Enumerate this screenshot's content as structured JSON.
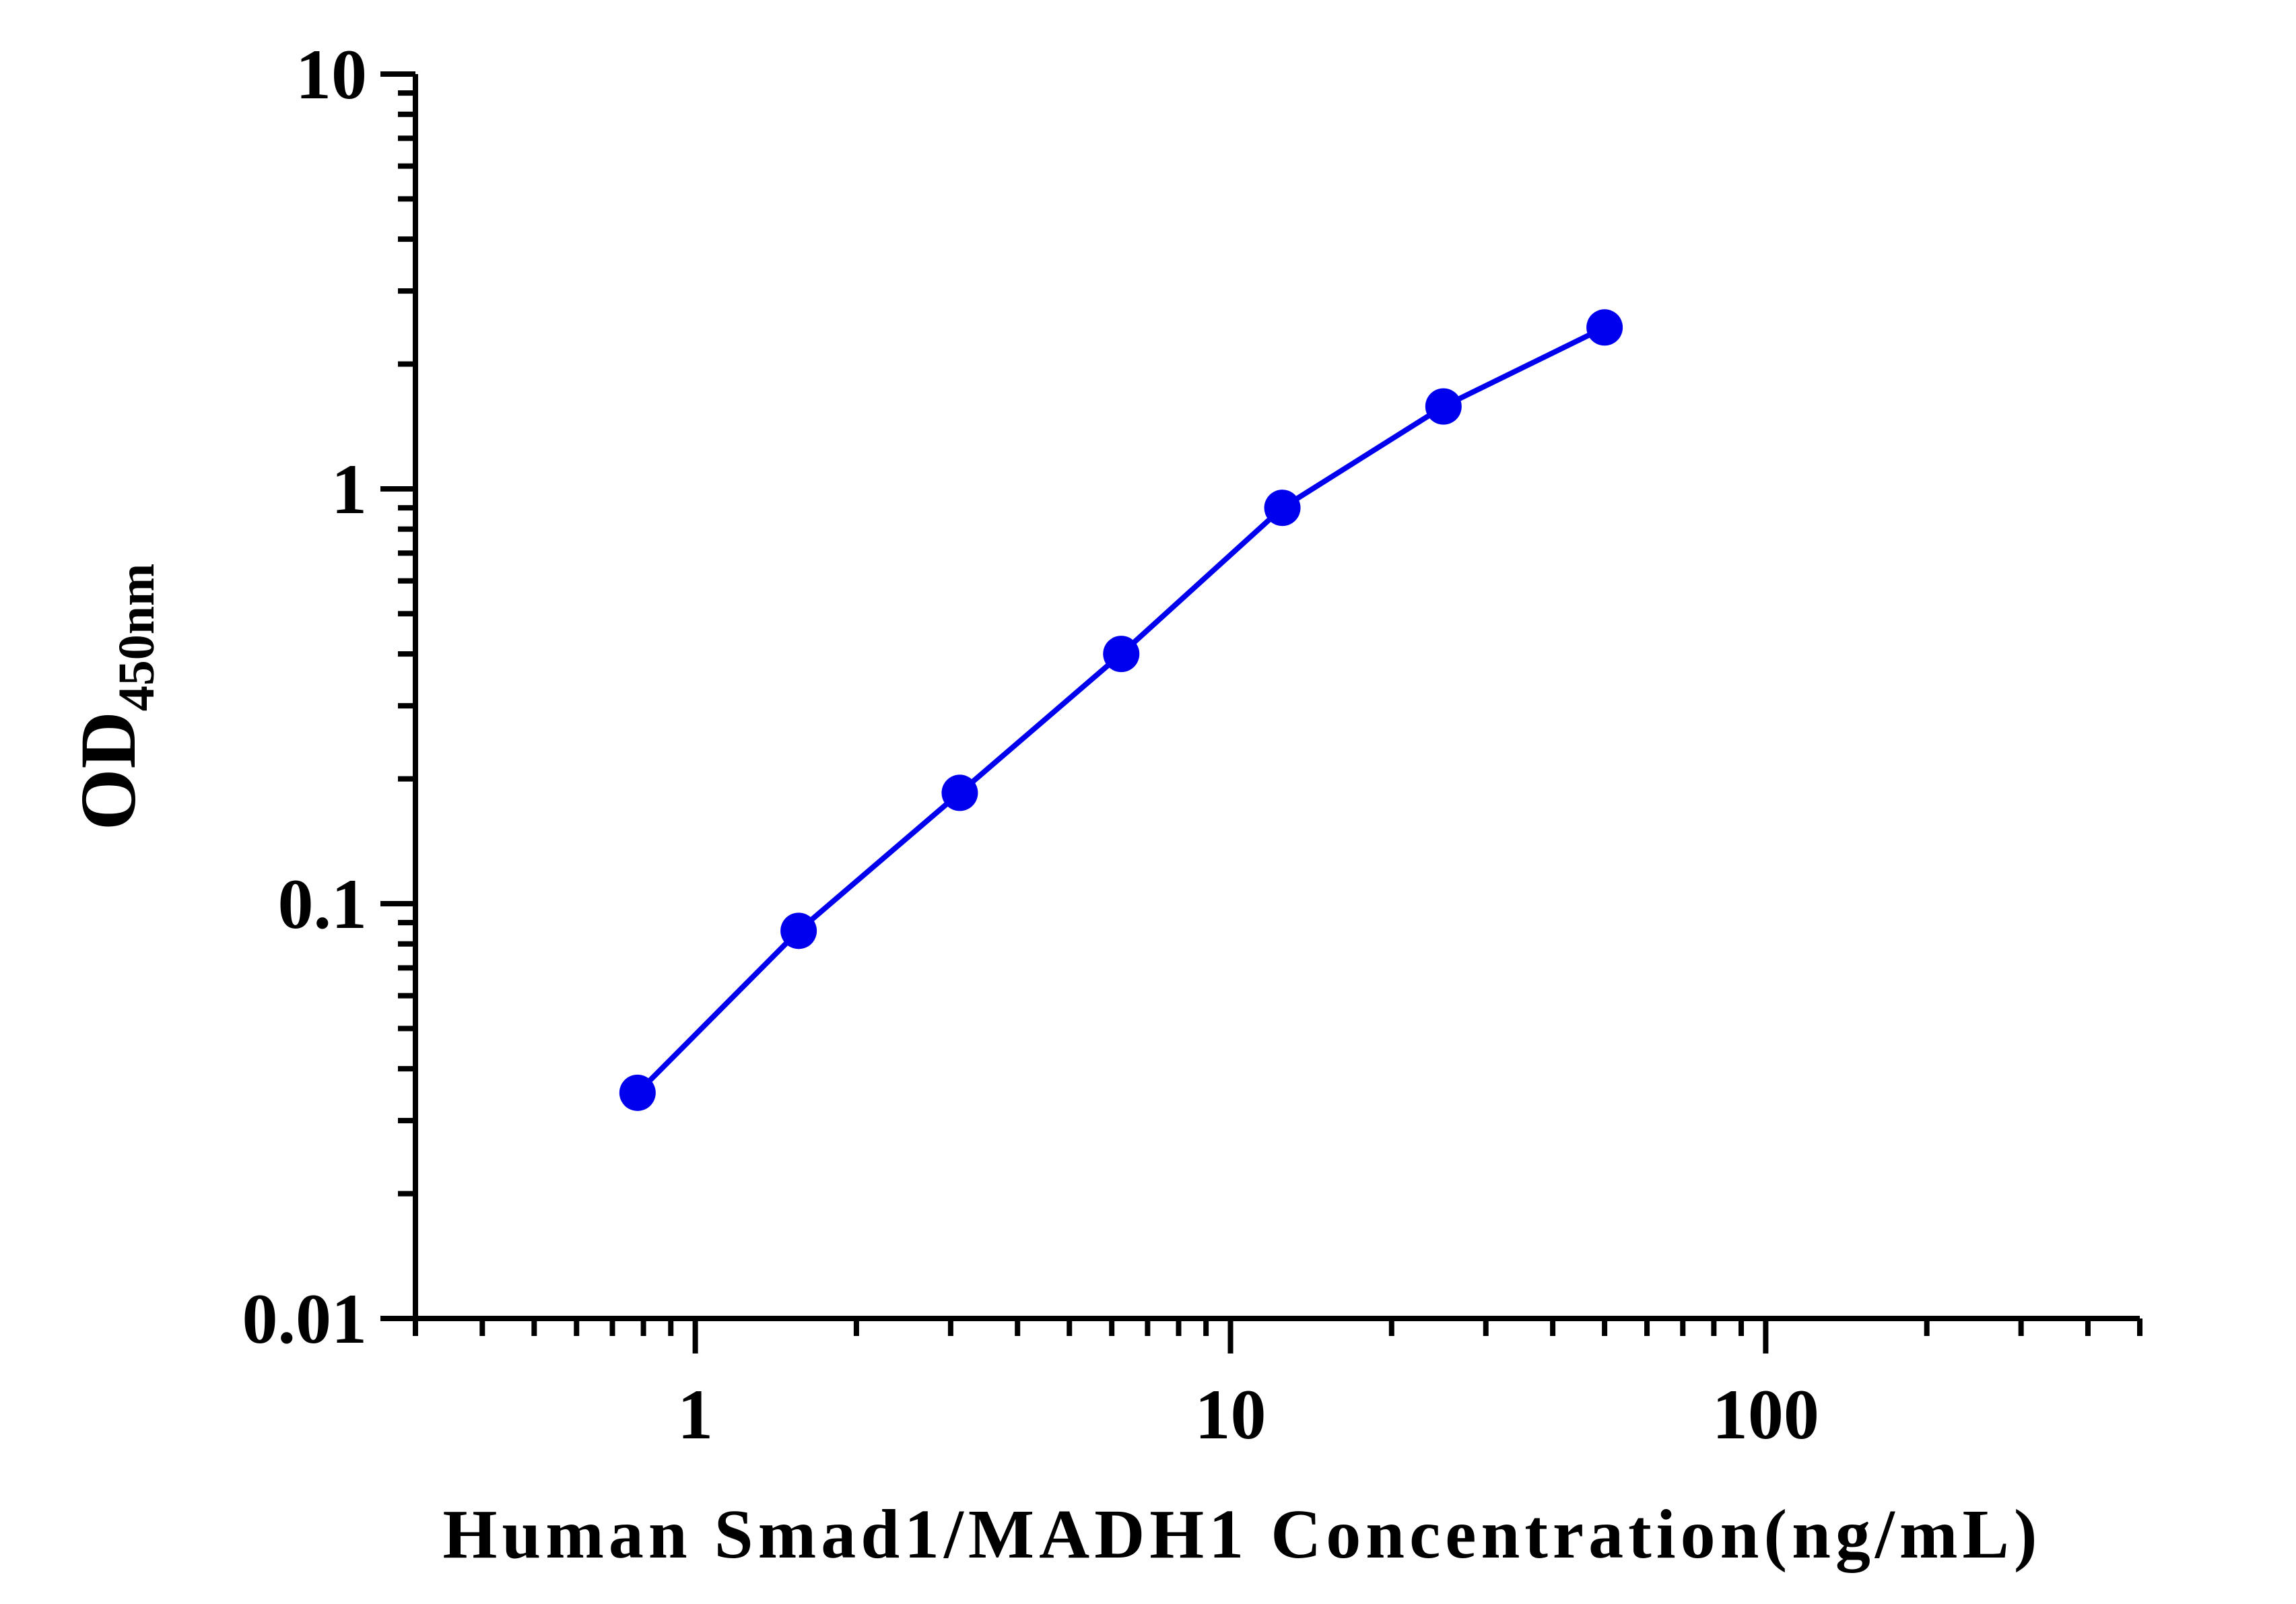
{
  "chart_data": {
    "type": "line",
    "xlabel": "Human Smad1/MADH1 Concentration(ng/mL)",
    "ylabel_main": "OD",
    "ylabel_sub": "450nm",
    "x_scale": "log",
    "y_scale": "log",
    "xlim": [
      0.3,
      500
    ],
    "ylim": [
      0.01,
      10
    ],
    "x_ticks": [
      1,
      10,
      100
    ],
    "x_tick_labels": [
      "1",
      "10",
      "100"
    ],
    "y_ticks": [
      0.01,
      0.1,
      1,
      10
    ],
    "y_tick_labels": [
      "0.01",
      "0.1",
      "1",
      "10"
    ],
    "grid": false,
    "legend": "none",
    "series": [
      {
        "color": "#0000ee",
        "x": [
          0.78,
          1.56,
          3.12,
          6.25,
          12.5,
          25,
          50
        ],
        "y": [
          0.035,
          0.086,
          0.185,
          0.4,
          0.9,
          1.58,
          2.45
        ]
      }
    ]
  }
}
